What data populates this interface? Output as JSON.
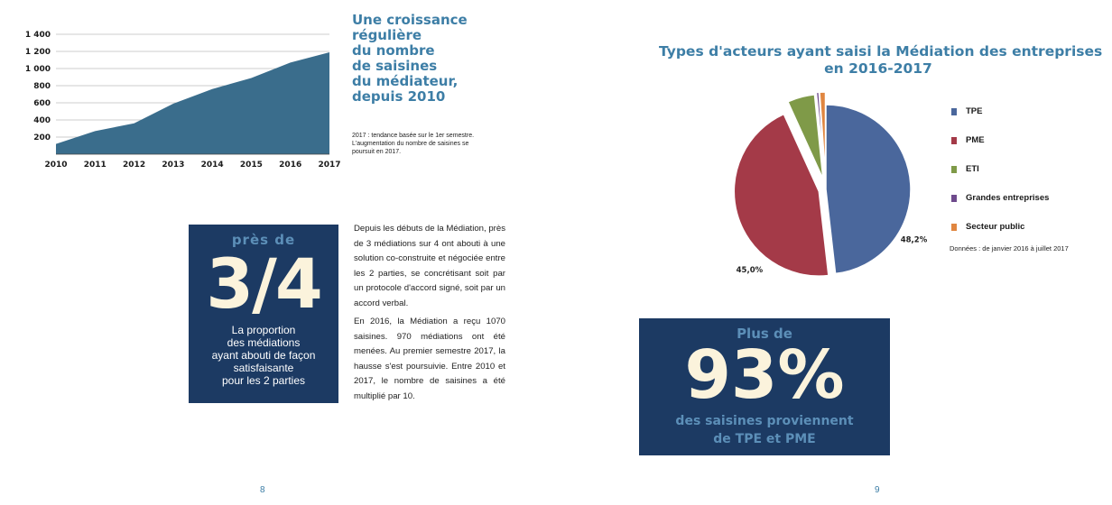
{
  "chart_data": [
    {
      "type": "area",
      "x": [
        "2010",
        "2011",
        "2012",
        "2013",
        "2014",
        "2015",
        "2016",
        "2017"
      ],
      "values": [
        120,
        270,
        360,
        590,
        760,
        890,
        1070,
        1190
      ],
      "y_ticks": [
        "200",
        "400",
        "600",
        "800",
        "1 000",
        "1 200",
        "1 400"
      ],
      "ylim": [
        0,
        1400
      ],
      "grid": true,
      "color": "#3a6d8c"
    },
    {
      "type": "pie",
      "title_lines": [
        "Types d'acteurs ayant saisi la Médiation des entreprises",
        "en 2016-2017"
      ],
      "slices": [
        {
          "name": "TPE",
          "value": 48.2,
          "label": "48,2%",
          "color": "#4a679c"
        },
        {
          "name": "PME",
          "value": 45.0,
          "label": "45,0%",
          "color": "#a43a48"
        },
        {
          "name": "ETI",
          "value": 5.2,
          "label": "5,2%",
          "color": "#7f9a48"
        },
        {
          "name": "Grandes entreprises",
          "value": 0.5,
          "label": "0,5%",
          "color": "#6e4a8c"
        },
        {
          "name": "Secteur public",
          "value": 1.1,
          "label": "1,1%",
          "color": "#e08640"
        }
      ],
      "legend_position": "right",
      "note": "Données : de janvier 2016 à juillet 2017"
    }
  ],
  "left_page": {
    "title_lines": [
      "Une croissance",
      "régulière",
      "du nombre",
      "de saisines",
      "du médiateur,",
      "depuis 2010"
    ],
    "chart_note": "2017 : tendance basée sur le 1er semestre. L'augmentation du nombre de saisines se poursuit en 2017.",
    "callout": {
      "top": "près de",
      "big": "3/4",
      "sub_lines": [
        "La proportion",
        "des médiations",
        "ayant abouti de façon",
        "satisfaisante",
        "pour les 2 parties"
      ]
    },
    "paragraph1": "Depuis les débuts de la Médiation, près de 3 médiations sur 4 ont abouti à une solution co-construite et négociée entre les 2 parties, se concrétisant soit par un protocole d'accord signé, soit par un accord verbal.",
    "paragraph2": "En 2016, la Médiation a reçu 1070 saisines. 970 médiations ont été menées. Au premier semestre 2017, la hausse s'est poursuivie. Entre 2010 et 2017, le nombre de saisines a été multiplié par 10.",
    "page_number": "8"
  },
  "right_page": {
    "callout": {
      "top": "Plus de",
      "big": "93%",
      "sub_lines": [
        "des saisines proviennent",
        "de TPE et PME"
      ]
    },
    "page_number": "9"
  }
}
